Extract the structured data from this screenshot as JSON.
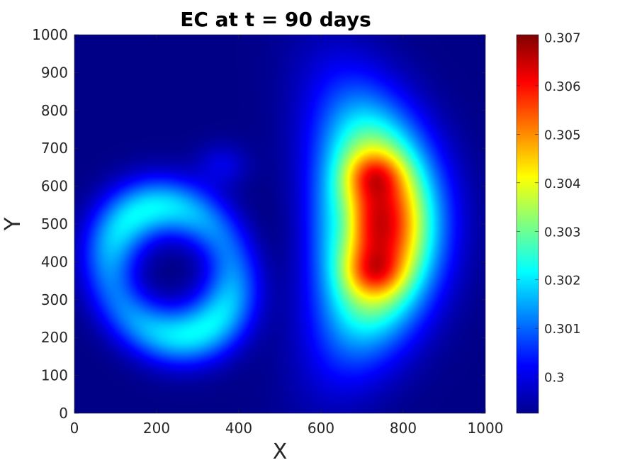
{
  "chart_data": {
    "type": "heatmap",
    "title": "EC at t = 90 days",
    "xlabel": "X",
    "ylabel": "Y",
    "xlim": [
      0,
      1000
    ],
    "ylim": [
      0,
      1000
    ],
    "x_ticks": [
      0,
      200,
      400,
      600,
      800,
      1000
    ],
    "y_ticks": [
      0,
      100,
      200,
      300,
      400,
      500,
      600,
      700,
      800,
      900,
      1000
    ],
    "colormap": "jet",
    "colorbar": {
      "range": [
        0.29925,
        0.30705
      ],
      "ticks": [
        0.3,
        0.301,
        0.302,
        0.303,
        0.304,
        0.305,
        0.306,
        0.307
      ],
      "tick_labels": [
        "0.3",
        "0.301",
        "0.302",
        "0.303",
        "0.304",
        "0.305",
        "0.306",
        "0.307"
      ]
    },
    "field": {
      "background": 0.2993,
      "features": [
        {
          "kind": "ring",
          "center": [
            235,
            380
          ],
          "radius": 170,
          "peak": 0.3022,
          "note": "annular plume, strongest at lower-right (approx 260,220) and upper-left (approx 220,550)"
        },
        {
          "kind": "blob",
          "center": [
            360,
            660
          ],
          "peak": 0.2999
        },
        {
          "kind": "kidney",
          "center": [
            740,
            500
          ],
          "peak": 0.3068,
          "local_maxima": [
            [
              730,
              630
            ],
            [
              730,
              370
            ]
          ],
          "center_value": 0.3044
        }
      ]
    },
    "grid": false
  }
}
